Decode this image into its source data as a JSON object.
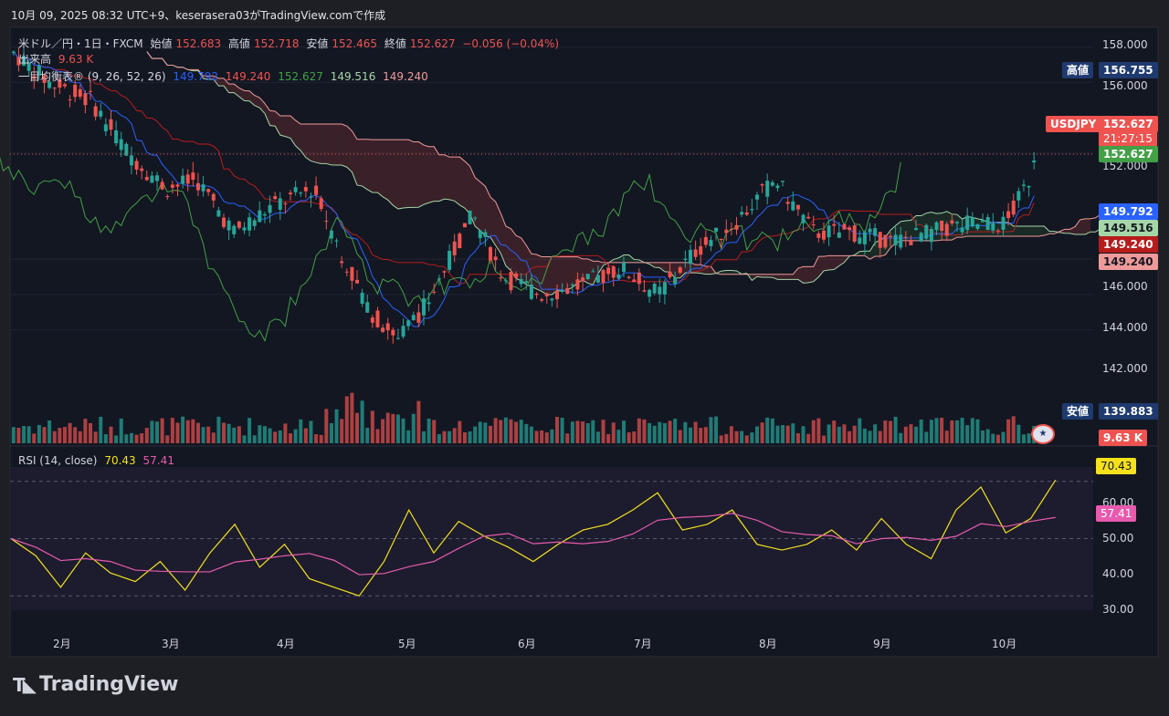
{
  "header": {
    "snapshot": "10月 09, 2025 08:32 UTC+9、keserasera03がTradingView.comで作成"
  },
  "legend": {
    "symbol": "米ドル／円・1日・FXCM",
    "open_label": "始値",
    "open": "152.683",
    "high_label": "高値",
    "high": "152.718",
    "low_label": "安値",
    "low": "152.465",
    "close_label": "終値",
    "close": "152.627",
    "change": "−0.056 (−0.04%)",
    "volume_label": "出来高",
    "volume": "9.63 K",
    "ichimoku_label": "一目均衡表® (9, 26, 52, 26)",
    "ichi_v1": "149.792",
    "ichi_v2": "149.240",
    "ichi_v3": "152.627",
    "ichi_v4": "149.516",
    "ichi_v5": "149.240",
    "rsi_label": "RSI (14, close)",
    "rsi_v": "70.43",
    "rsi_ma": "57.41"
  },
  "price_axis": {
    "ticks": [
      "158.000",
      "156.000",
      "152.000",
      "146.000",
      "144.000",
      "142.000"
    ]
  },
  "price_tags": {
    "high_label": "高値",
    "high_value": "156.755",
    "symbol": "USDJPY",
    "last": "152.627",
    "countdown": "21:27:15",
    "chikou": "152.627",
    "tenkan": "149.792",
    "span_a": "149.516",
    "kijun": "149.240",
    "span_b": "149.240",
    "low_label": "安値",
    "low_value": "139.883",
    "volume": "9.63 K"
  },
  "rsi_axis": {
    "ticks": [
      "60.00",
      "50.00",
      "40.00",
      "30.00"
    ],
    "rsi": "70.43",
    "ma": "57.41"
  },
  "time_axis": [
    "2月",
    "3月",
    "4月",
    "5月",
    "6月",
    "7月",
    "8月",
    "9月",
    "10月"
  ],
  "brand": "TradingView",
  "colors": {
    "up": "#26a69a",
    "down": "#ef5350",
    "tenkan": "#2962ff",
    "kijun": "#b71c1c",
    "chikou": "#43a047",
    "spanA": "#a5d6a7",
    "spanB": "#ef9a9a",
    "rsi": "#f5e11c",
    "rsi_ma": "#e85aad"
  },
  "chart_data": {
    "type": "candlestick",
    "symbol": "USDJPY",
    "ylim": [
      139.5,
      158.6
    ],
    "time_labels": [
      "2月",
      "3月",
      "4月",
      "5月",
      "6月",
      "7月",
      "8月",
      "9月",
      "10月"
    ],
    "close_path": [
      [
        "2025-01-10",
        157.8
      ],
      [
        "2025-01-20",
        156.0
      ],
      [
        "2025-01-31",
        155.0
      ],
      [
        "2025-02-10",
        152.0
      ],
      [
        "2025-02-20",
        150.0
      ],
      [
        "2025-02-28",
        150.5
      ],
      [
        "2025-03-10",
        147.5
      ],
      [
        "2025-03-20",
        149.0
      ],
      [
        "2025-03-31",
        150.0
      ],
      [
        "2025-04-07",
        146.5
      ],
      [
        "2025-04-15",
        143.0
      ],
      [
        "2025-04-22",
        141.5
      ],
      [
        "2025-04-30",
        143.5
      ],
      [
        "2025-05-12",
        148.5
      ],
      [
        "2025-05-20",
        145.0
      ],
      [
        "2025-05-30",
        144.0
      ],
      [
        "2025-06-10",
        144.5
      ],
      [
        "2025-06-20",
        145.5
      ],
      [
        "2025-06-30",
        144.0
      ],
      [
        "2025-07-10",
        146.5
      ],
      [
        "2025-07-20",
        148.0
      ],
      [
        "2025-07-31",
        150.5
      ],
      [
        "2025-08-10",
        147.5
      ],
      [
        "2025-08-20",
        147.5
      ],
      [
        "2025-08-31",
        147.0
      ],
      [
        "2025-09-10",
        147.5
      ],
      [
        "2025-09-20",
        148.0
      ],
      [
        "2025-09-30",
        148.0
      ],
      [
        "2025-10-06",
        150.5
      ],
      [
        "2025-10-08",
        152.627
      ]
    ],
    "rsi": {
      "values": [
        [
          0,
          50
        ],
        [
          5,
          44
        ],
        [
          10,
          33
        ],
        [
          15,
          45
        ],
        [
          20,
          38
        ],
        [
          25,
          35
        ],
        [
          30,
          42
        ],
        [
          35,
          32
        ],
        [
          40,
          45
        ],
        [
          45,
          55
        ],
        [
          50,
          40
        ],
        [
          55,
          48
        ],
        [
          60,
          36
        ],
        [
          65,
          33
        ],
        [
          70,
          30
        ],
        [
          75,
          42
        ],
        [
          80,
          60
        ],
        [
          85,
          45
        ],
        [
          90,
          56
        ],
        [
          95,
          51
        ],
        [
          100,
          47
        ],
        [
          105,
          42
        ],
        [
          110,
          48
        ],
        [
          115,
          53
        ],
        [
          120,
          55
        ],
        [
          125,
          60
        ],
        [
          130,
          66
        ],
        [
          135,
          53
        ],
        [
          140,
          55
        ],
        [
          145,
          60
        ],
        [
          150,
          48
        ],
        [
          155,
          46
        ],
        [
          160,
          48
        ],
        [
          165,
          53
        ],
        [
          170,
          46
        ],
        [
          175,
          57
        ],
        [
          180,
          48
        ],
        [
          185,
          43
        ],
        [
          190,
          60
        ],
        [
          195,
          68
        ],
        [
          200,
          52
        ],
        [
          205,
          57
        ]
      ],
      "ma_last": 57.41,
      "last": 70.43,
      "levels": [
        70,
        50,
        30
      ]
    },
    "ohlc_last": {
      "open": 152.683,
      "high": 152.718,
      "low": 152.465,
      "close": 152.627
    },
    "period_high": 156.755,
    "period_low": 139.883
  }
}
